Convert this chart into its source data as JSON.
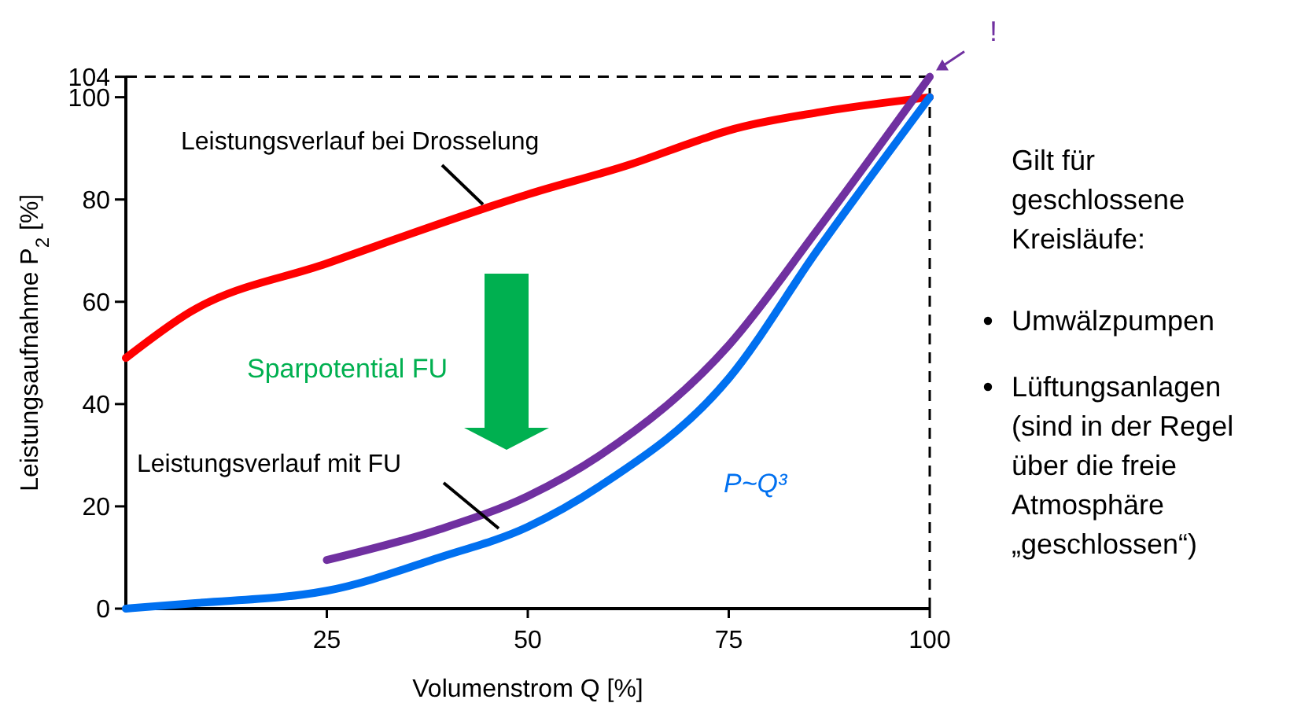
{
  "chart_data": {
    "type": "line",
    "xlabel": "Volumenstrom Q [%]",
    "ylabel": "Leistungsaufnahme P$_{2}$ [%]",
    "xlim": [
      0,
      100
    ],
    "ylim": [
      0,
      104
    ],
    "xticks": [
      25,
      50,
      75,
      100
    ],
    "yticks": [
      0,
      20,
      40,
      60,
      80,
      100,
      104
    ],
    "line_style": "solid",
    "series": [
      {
        "name": "Leistungsverlauf bei Drosselung",
        "color": "#ff0000",
        "x": [
          0,
          8,
          25,
          50,
          63,
          72,
          75,
          86,
          100
        ],
        "values": [
          49,
          58,
          67.5,
          81,
          87,
          92,
          93.5,
          97,
          100
        ]
      },
      {
        "name": "Leistungsverlauf mit FU",
        "color": "#7030a0",
        "x": [
          25,
          39,
          50,
          59,
          75,
          86,
          100
        ],
        "values": [
          9.5,
          15.5,
          22,
          30,
          51.5,
          74,
          104
        ]
      },
      {
        "name": "P~Q³",
        "color": "#0070f0",
        "x": [
          0,
          8,
          25,
          39,
          50,
          59,
          75,
          86,
          100
        ],
        "values": [
          0,
          1,
          3.5,
          10,
          16,
          24,
          45,
          70,
          100
        ]
      }
    ],
    "ref_lines": [
      {
        "axis": "x",
        "value": 100,
        "color": "#000000",
        "line_style": "dashed"
      },
      {
        "axis": "y",
        "value": 104,
        "color": "#000000",
        "line_style": "dashed"
      }
    ],
    "annotations": [
      "Sparpotential FU",
      {
        "text": "!",
        "x": 100,
        "y": 104
      },
      "Gilt für\ngeschlossene\nKreisläufe:",
      "Umwälzpumpen",
      "Lüftungsanlagen\n(sind in der Regel\nüber die freie\nAtmosphäre\n„geschlossen“)"
    ]
  }
}
